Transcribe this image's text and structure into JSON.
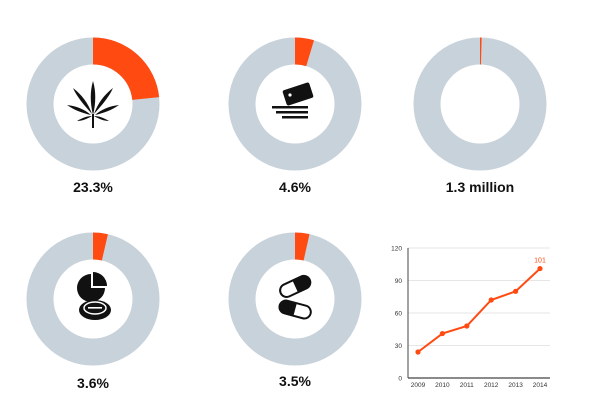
{
  "colors": {
    "accent": "#ff4a12",
    "track": "#c8d2da",
    "grid": "#e6e6e6",
    "axis": "#444444"
  },
  "chart_data": [
    {
      "type": "pie",
      "variant": "donut",
      "icon": "cannabis-leaf-icon",
      "percent": 23.3,
      "label": "23.3%"
    },
    {
      "type": "pie",
      "variant": "donut",
      "icon": "cocaine-line-icon",
      "percent": 4.6,
      "label": "4.6%"
    },
    {
      "type": "pie",
      "variant": "donut",
      "icon": "",
      "percent": 0.4,
      "label": "1.3 million"
    },
    {
      "type": "pie",
      "variant": "donut",
      "icon": "pill-and-tablet-icon",
      "percent": 3.6,
      "label": "3.6%"
    },
    {
      "type": "pie",
      "variant": "donut",
      "icon": "capsules-icon",
      "percent": 3.5,
      "label": "3.5%"
    },
    {
      "type": "line",
      "title": "",
      "xlabel": "",
      "ylabel": "",
      "x": [
        "2009",
        "2010",
        "2011",
        "2012",
        "2013",
        "2014"
      ],
      "y": [
        24,
        41,
        48,
        72,
        80,
        101
      ],
      "ylim": [
        0,
        120
      ],
      "yticks": [
        "0",
        "30",
        "60",
        "90",
        "120"
      ],
      "annotation": "101",
      "grid": true
    }
  ]
}
